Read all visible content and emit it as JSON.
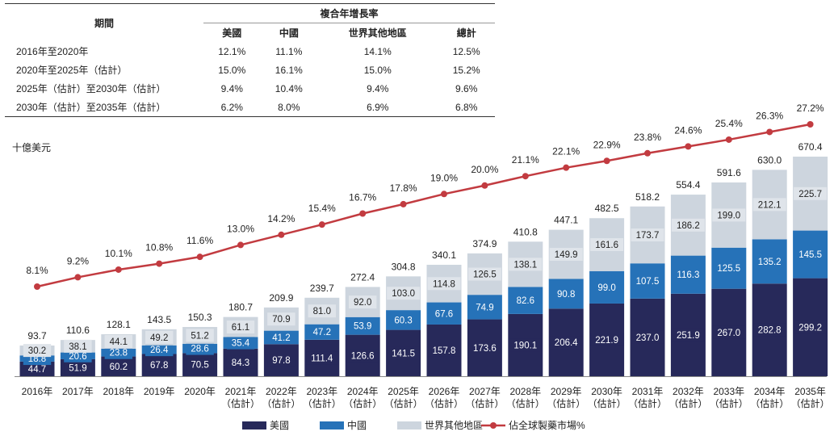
{
  "cagr_table": {
    "title_period": "期間",
    "title_cagr": "複合年增長率",
    "columns": [
      "美國",
      "中國",
      "世界其他地區",
      "總計"
    ],
    "rows": [
      {
        "period": "2016年至2020年",
        "values": [
          "12.1%",
          "11.1%",
          "14.1%",
          "12.5%"
        ]
      },
      {
        "period": "2020年至2025年（估計）",
        "values": [
          "15.0%",
          "16.1%",
          "15.0%",
          "15.2%"
        ]
      },
      {
        "period": "2025年（估計）至2030年（估計）",
        "values": [
          "9.4%",
          "10.4%",
          "9.4%",
          "9.6%"
        ]
      },
      {
        "period": "2030年（估計）至2035年（估計）",
        "values": [
          "6.2%",
          "8.0%",
          "6.9%",
          "6.8%"
        ]
      }
    ]
  },
  "chart_data": {
    "type": "bar",
    "stacked": true,
    "unit_label": "十億美元",
    "categories": [
      "2016年",
      "2017年",
      "2018年",
      "2019年",
      "2020年",
      "2021年",
      "2022年",
      "2023年",
      "2024年",
      "2025年",
      "2026年",
      "2027年",
      "2028年",
      "2029年",
      "2030年",
      "2031年",
      "2032年",
      "2033年",
      "2034年",
      "2035年"
    ],
    "estimate_note": "（估計）",
    "estimate_from_index": 5,
    "series": [
      {
        "name": "美國",
        "color": "#27295a",
        "values": [
          44.7,
          51.9,
          60.2,
          67.8,
          70.5,
          84.3,
          97.8,
          111.4,
          126.6,
          141.5,
          157.8,
          173.6,
          190.1,
          206.4,
          221.9,
          237.0,
          251.9,
          267.0,
          282.8,
          299.2
        ]
      },
      {
        "name": "中國",
        "color": "#2672b8",
        "values": [
          18.8,
          20.6,
          23.8,
          26.4,
          28.6,
          35.4,
          41.2,
          47.2,
          53.9,
          60.3,
          67.6,
          74.9,
          82.6,
          90.8,
          99.0,
          107.5,
          116.3,
          125.5,
          135.2,
          145.5
        ]
      },
      {
        "name": "世界其他地區",
        "color": "#cdd5de",
        "values": [
          30.2,
          38.1,
          44.1,
          49.2,
          51.2,
          61.1,
          70.9,
          81.0,
          92.0,
          103.0,
          114.8,
          126.5,
          138.1,
          149.9,
          161.6,
          173.7,
          186.2,
          199.0,
          212.1,
          225.7
        ]
      }
    ],
    "totals": [
      93.7,
      110.6,
      128.1,
      143.5,
      150.3,
      180.7,
      209.9,
      239.7,
      272.4,
      304.8,
      340.1,
      374.9,
      410.8,
      447.1,
      482.5,
      518.2,
      554.4,
      591.6,
      630.0,
      670.4
    ],
    "line_series": {
      "name": "佔全球製藥市場%",
      "color": "#c23b40",
      "values": [
        8.1,
        9.2,
        10.1,
        10.8,
        11.6,
        13.0,
        14.2,
        15.4,
        16.7,
        17.8,
        19.0,
        20.0,
        21.1,
        22.1,
        22.9,
        23.8,
        24.6,
        25.4,
        26.3,
        27.2
      ],
      "labels": [
        "8.1%",
        "9.2%",
        "10.1%",
        "10.8%",
        "11.6%",
        "13.0%",
        "14.2%",
        "15.4%",
        "16.7%",
        "17.8%",
        "19.0%",
        "20.0%",
        "21.1%",
        "22.1%",
        "22.9%",
        "23.8%",
        "24.6%",
        "25.4%",
        "26.3%",
        "27.2%"
      ]
    },
    "legend": [
      "美國",
      "中國",
      "世界其他地區",
      "佔全球製藥市場%"
    ]
  }
}
